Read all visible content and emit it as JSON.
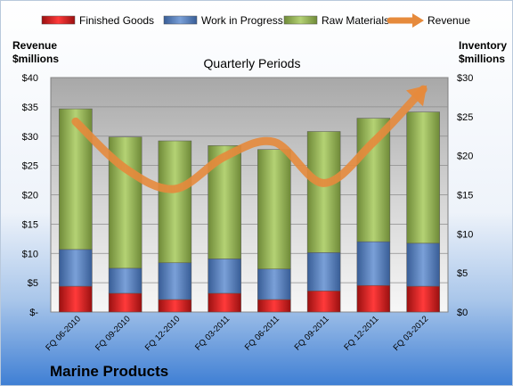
{
  "chart_data": {
    "type": "bar",
    "stacked": true,
    "title": "Quarterly Periods",
    "company": "Marine Products",
    "y_left_label_line1": "Revenue",
    "y_left_label_line2": "$millions",
    "y_right_label_line1": "Inventory",
    "y_right_label_line2": "$millions",
    "categories": [
      "FQ 06-2010",
      "FQ 09-2010",
      "FQ 12-2010",
      "FQ 03-2011",
      "FQ 06-2011",
      "FQ 09-2011",
      "FQ 12-2011",
      "FQ 03-2012"
    ],
    "ylim_left": [
      0,
      40
    ],
    "ylim_right": [
      0,
      30
    ],
    "left_ticks": [
      "$-",
      "$5",
      "$10",
      "$15",
      "$20",
      "$25",
      "$30",
      "$35",
      "$40"
    ],
    "right_ticks": [
      "$0",
      "$5",
      "$10",
      "$15",
      "$20",
      "$25",
      "$30"
    ],
    "grid": true,
    "legend_position": "top",
    "series": [
      {
        "name": "Finished Goods",
        "axis": "right",
        "color": "#e02020",
        "values": [
          3.3,
          2.4,
          1.6,
          2.4,
          1.6,
          2.7,
          3.4,
          3.3
        ]
      },
      {
        "name": "Work in Progress",
        "axis": "right",
        "color": "#4f7fc8",
        "values": [
          4.7,
          3.2,
          4.7,
          4.4,
          3.9,
          4.9,
          5.6,
          5.5
        ]
      },
      {
        "name": "Raw Materials",
        "axis": "right",
        "color": "#9bbb59",
        "values": [
          18.0,
          16.8,
          15.6,
          14.5,
          15.3,
          15.5,
          15.8,
          16.8
        ]
      },
      {
        "name": "Revenue",
        "axis": "left",
        "color": "#e68a3c",
        "values": [
          32.5,
          24.5,
          21.0,
          26.5,
          29.0,
          22.0,
          29.0,
          38.0
        ]
      }
    ]
  }
}
